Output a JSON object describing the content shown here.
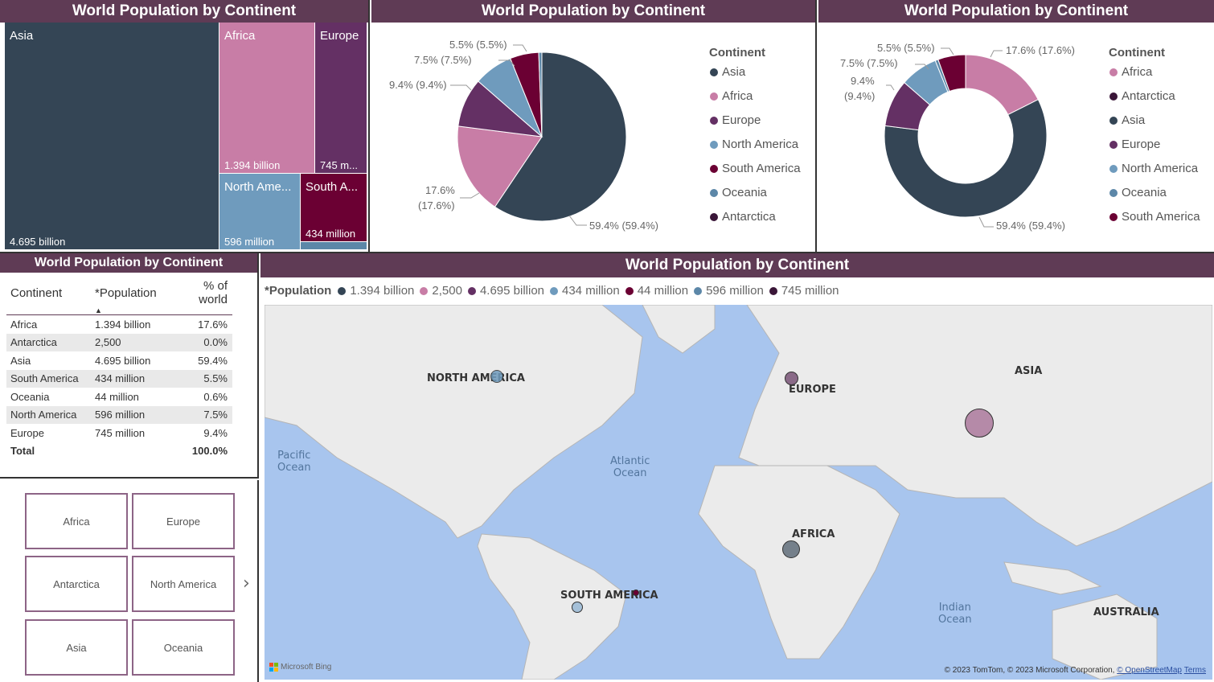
{
  "title": "World Population by Continent",
  "colors": {
    "asia": "#344555",
    "africa": "#c87da6",
    "europe": "#643064",
    "north_america": "#6f9bbd",
    "south_america": "#6b0033",
    "oceania": "#5c87a8",
    "antarctica": "#3a1638",
    "header": "#5f3b55"
  },
  "treemap": {
    "title": "World Population by Continent",
    "tiles": [
      {
        "label": "Asia",
        "value": "4.695 billion"
      },
      {
        "label": "Africa",
        "value": "1.394 billion"
      },
      {
        "label": "Europe",
        "value": "745 m..."
      },
      {
        "label": "North Ame...",
        "value": "596 million"
      },
      {
        "label": "South A...",
        "value": "434 million"
      }
    ]
  },
  "pie": {
    "title": "World Population by Continent",
    "legend_title": "Continent",
    "legend": [
      "Asia",
      "Africa",
      "Europe",
      "North America",
      "South America",
      "Oceania",
      "Antarctica"
    ],
    "labels": [
      "5.5% (5.5%)",
      "7.5% (7.5%)",
      "9.4% (9.4%)",
      "17.6%",
      "(17.6%)",
      "59.4% (59.4%)"
    ]
  },
  "donut": {
    "title": "World Population by Continent",
    "legend_title": "Continent",
    "legend": [
      "Africa",
      "Antarctica",
      "Asia",
      "Europe",
      "North America",
      "Oceania",
      "South America"
    ],
    "labels": [
      "5.5% (5.5%)",
      "17.6% (17.6%)",
      "7.5% (7.5%)",
      "9.4%",
      "(9.4%)",
      "59.4% (59.4%)"
    ]
  },
  "table": {
    "title": "World Population by Continent",
    "headers": [
      "Continent",
      "*Population",
      "% of world"
    ],
    "rows": [
      [
        "Africa",
        "1.394 billion",
        "17.6%"
      ],
      [
        "Antarctica",
        "2,500",
        "0.0%"
      ],
      [
        "Asia",
        "4.695 billion",
        "59.4%"
      ],
      [
        "South America",
        "434 million",
        "5.5%"
      ],
      [
        "Oceania",
        "44 million",
        "0.6%"
      ],
      [
        "North America",
        "596 million",
        "7.5%"
      ],
      [
        "Europe",
        "745 million",
        "9.4%"
      ]
    ],
    "total": [
      "Total",
      "",
      "100.0%"
    ]
  },
  "slicer": {
    "items": [
      "Africa",
      "Europe",
      "Antarctica",
      "North America",
      "Asia",
      "Oceania"
    ]
  },
  "map": {
    "title": "World Population by Continent",
    "legend_title": "*Population",
    "legend": [
      "1.394 billion",
      "2,500",
      "4.695 billion",
      "434 million",
      "44 million",
      "596 million",
      "745 million"
    ],
    "labels": {
      "north_america": "NORTH AMERICA",
      "europe": "EUROPE",
      "asia": "ASIA",
      "africa": "AFRICA",
      "south_america": "SOUTH AMERICA",
      "australia": "AUSTRALIA"
    },
    "oceans": {
      "pacific": "Pacific\nOcean",
      "atlantic": "Atlantic\nOcean",
      "indian": "Indian\nOcean"
    },
    "attribution": "© 2023 TomTom, © 2023 Microsoft Corporation,",
    "osm": "© OpenStreetMap",
    "terms": "Terms",
    "brand": "Microsoft Bing"
  },
  "chart_data": [
    {
      "type": "pie",
      "categories": [
        "Asia",
        "Africa",
        "Europe",
        "North America",
        "South America",
        "Oceania",
        "Antarctica"
      ],
      "values": [
        59.4,
        17.6,
        9.4,
        7.5,
        5.5,
        0.6,
        0.0
      ]
    },
    {
      "type": "pie",
      "categories": [
        "Africa",
        "Antarctica",
        "Asia",
        "Europe",
        "North America",
        "Oceania",
        "South America"
      ],
      "values": [
        17.6,
        0.0,
        59.4,
        9.4,
        7.5,
        0.6,
        5.5
      ]
    }
  ]
}
